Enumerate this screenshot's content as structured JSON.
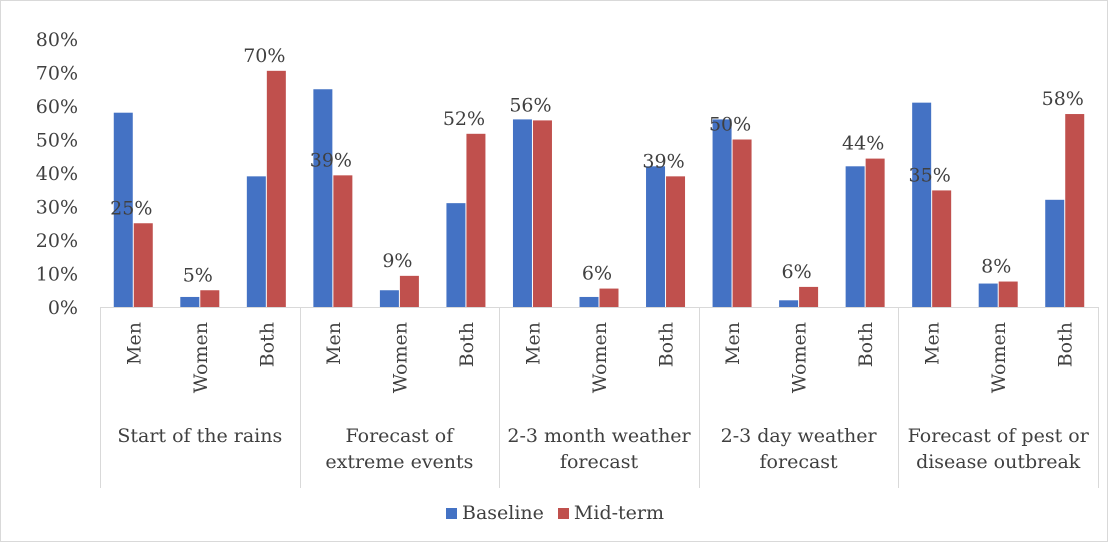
{
  "chart_data": {
    "type": "bar",
    "title": "",
    "xlabel": "",
    "ylabel": "",
    "ylim": [
      0,
      0.8
    ],
    "y_ticks": [
      "0%",
      "10%",
      "20%",
      "30%",
      "40%",
      "50%",
      "60%",
      "70%",
      "80%"
    ],
    "grid": false,
    "legend_position": "bottom",
    "groups": [
      {
        "label_lines": [
          "Start of the rains"
        ],
        "categories": [
          "Men",
          "Women",
          "Both"
        ]
      },
      {
        "label_lines": [
          "Forecast of",
          "extreme events"
        ],
        "categories": [
          "Men",
          "Women",
          "Both"
        ]
      },
      {
        "label_lines": [
          "2-3 month weather",
          "forecast"
        ],
        "categories": [
          "Men",
          "Women",
          "Both"
        ]
      },
      {
        "label_lines": [
          "2-3 day weather",
          "forecast"
        ],
        "categories": [
          "Men",
          "Women",
          "Both"
        ]
      },
      {
        "label_lines": [
          "Forecast of pest or",
          "disease outbreak"
        ],
        "categories": [
          "Men",
          "Women",
          "Both"
        ]
      }
    ],
    "series": [
      {
        "name": "Baseline",
        "color": "#4472c4",
        "values": [
          0.58,
          0.03,
          0.39,
          0.65,
          0.05,
          0.31,
          0.56,
          0.03,
          0.42,
          0.56,
          0.02,
          0.42,
          0.61,
          0.07,
          0.32
        ],
        "data_labels": [
          "",
          "",
          "",
          "",
          "",
          "",
          "",
          "",
          "",
          "",
          "",
          "",
          "",
          "",
          ""
        ]
      },
      {
        "name": "Mid-term",
        "color": "#c0504d",
        "values": [
          0.25,
          0.05,
          0.705,
          0.393,
          0.093,
          0.517,
          0.557,
          0.055,
          0.39,
          0.5,
          0.06,
          0.443,
          0.348,
          0.076,
          0.576
        ],
        "data_labels": [
          "25%",
          "5%",
          "70%",
          "39%",
          "9%",
          "52%",
          "56%",
          "6%",
          "39%",
          "50%",
          "6%",
          "44%",
          "35%",
          "8%",
          "58%"
        ]
      }
    ]
  }
}
